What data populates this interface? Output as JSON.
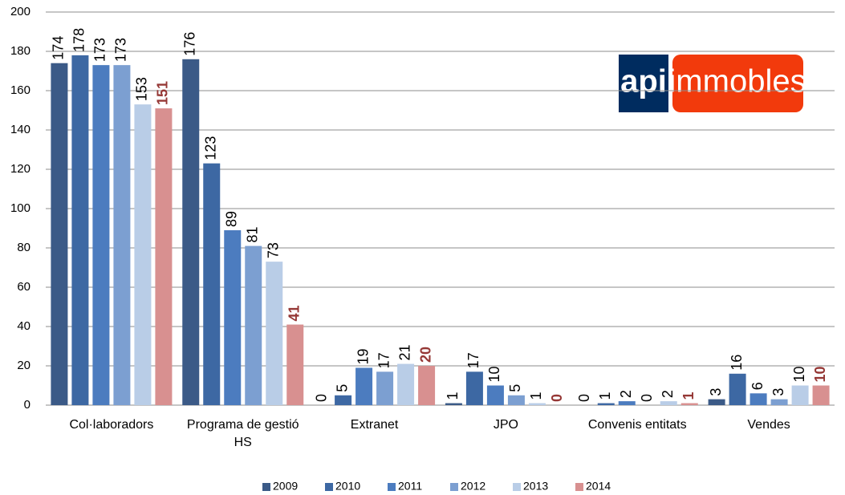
{
  "chart_data": {
    "type": "bar",
    "categories": [
      "Col·laboradors",
      "Programa de gestió HS",
      "Extranet",
      "JPO",
      "Convenis entitats",
      "Vendes"
    ],
    "series": [
      {
        "name": "2009",
        "color": "#3b5a87",
        "values": [
          174,
          176,
          0,
          1,
          0,
          3
        ]
      },
      {
        "name": "2010",
        "color": "#3d68a3",
        "values": [
          178,
          123,
          5,
          17,
          1,
          16
        ]
      },
      {
        "name": "2011",
        "color": "#4c7cbf",
        "values": [
          173,
          89,
          19,
          10,
          2,
          6
        ]
      },
      {
        "name": "2012",
        "color": "#7c9fd1",
        "values": [
          173,
          81,
          17,
          5,
          0,
          3
        ]
      },
      {
        "name": "2013",
        "color": "#b9cde7",
        "values": [
          153,
          73,
          21,
          1,
          2,
          10
        ]
      },
      {
        "name": "2014",
        "color": "#d89090",
        "values": [
          151,
          41,
          20,
          0,
          1,
          10
        ]
      }
    ],
    "ylim": [
      0,
      200
    ],
    "yticks": [
      0,
      20,
      40,
      60,
      80,
      100,
      120,
      140,
      160,
      180,
      200
    ],
    "grid": true,
    "legend": "bottom"
  },
  "logo": {
    "left": "api",
    "right": "immobles"
  }
}
